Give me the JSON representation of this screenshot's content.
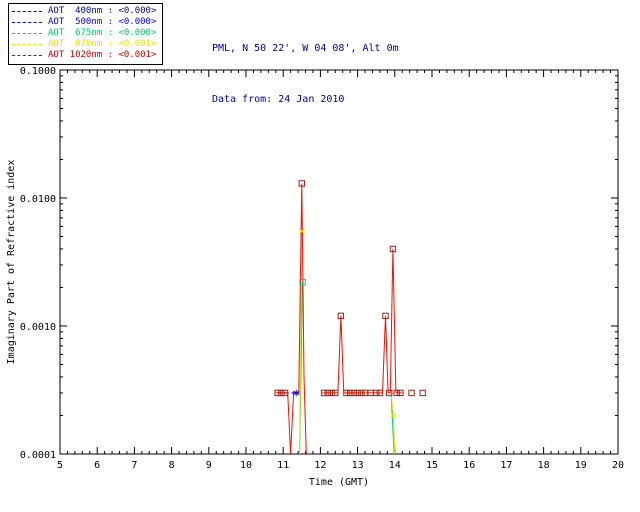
{
  "header": {
    "location_line": "PML, N 50 22', W 04 08', Alt 0m",
    "date_line": "Data from: 24 Jan 2010",
    "text_color": "#000099"
  },
  "legend": {
    "entries": [
      {
        "label": "AOT  400nm : <0.000>",
        "color": "#000099"
      },
      {
        "label": "AOT  500nm : <0.000>",
        "color": "#0000ff"
      },
      {
        "label": "AOT  675nm : <0.000>",
        "color": "#00cc66"
      },
      {
        "label": "AOT  870nm : <0.001>",
        "color": "#f0dd00"
      },
      {
        "label": "AOT 1020nm : <0.001>",
        "color": "#cc0000"
      }
    ]
  },
  "chart_data": {
    "type": "line",
    "title": "",
    "xlabel": "Time (GMT)",
    "ylabel": "Imaginary Part of Refractive index",
    "xlim": [
      5,
      20
    ],
    "x_major_ticks": [
      5,
      6,
      7,
      8,
      9,
      10,
      11,
      12,
      13,
      14,
      15,
      16,
      17,
      18,
      19,
      20
    ],
    "x_minor_step": 0.2,
    "y_scale": "log",
    "ylim": [
      0.0001,
      0.1
    ],
    "y_major_ticks": [
      {
        "value": 0.0001,
        "label": "0.0001"
      },
      {
        "value": 0.001,
        "label": "0.0010"
      },
      {
        "value": 0.01,
        "label": "0.0100"
      },
      {
        "value": 0.1,
        "label": "0.1000"
      }
    ],
    "grid": false,
    "legend_position": "top-left",
    "background": "#ffffff",
    "axis_color": "#000000",
    "series": [
      {
        "name": "AOT 400nm",
        "legend_value": "<0.000>",
        "color": "#000099",
        "dash": "4,3",
        "segments": [
          [
            [
              10.85,
              0.0003
            ],
            [
              11.42,
              0.0003
            ]
          ]
        ],
        "marker": {
          "shape": "none",
          "points": []
        }
      },
      {
        "name": "AOT 500nm",
        "legend_value": "<0.000>",
        "color": "#0000ff",
        "dash": "4,3",
        "segments": [
          [
            [
              10.85,
              0.0003
            ],
            [
              11.45,
              0.0003
            ]
          ]
        ],
        "marker": {
          "shape": "asterisk",
          "points": [
            [
              11.35,
              0.0003
            ]
          ]
        }
      },
      {
        "name": "AOT 675nm",
        "legend_value": "<0.000>",
        "color": "#00cc77",
        "dash": "",
        "segments": [
          [
            [
              11.44,
              0.0001
            ],
            [
              11.52,
              0.0022
            ]
          ],
          [
            [
              13.9,
              0.0003
            ],
            [
              13.98,
              0.0001
            ]
          ]
        ],
        "marker": {
          "shape": "square",
          "points": [
            [
              11.52,
              0.0022
            ]
          ]
        }
      },
      {
        "name": "AOT 870nm",
        "legend_value": "<0.001>",
        "color": "#f0dd00",
        "dash": "",
        "segments": [
          [
            [
              11.44,
              0.0001
            ],
            [
              11.5,
              0.0055
            ]
          ],
          [
            [
              13.9,
              0.0003
            ],
            [
              13.96,
              0.0002
            ],
            [
              14.0,
              0.0001
            ]
          ]
        ],
        "marker": {
          "shape": "x",
          "points": [
            [
              11.5,
              0.0055
            ],
            [
              13.96,
              0.0002
            ]
          ]
        }
      },
      {
        "name": "AOT 1020nm",
        "legend_value": "<0.001>",
        "color": "#ee1100",
        "marker_color": "#a02210",
        "dash": "",
        "segments": [
          [
            [
              10.8,
              0.0003
            ],
            [
              11.12,
              0.0003
            ],
            [
              11.2,
              0.0001
            ],
            [
              11.28,
              0.0003
            ],
            [
              11.42,
              0.0003
            ],
            [
              11.5,
              0.013
            ],
            [
              11.56,
              0.0004
            ],
            [
              11.62,
              0.0001
            ]
          ],
          [
            [
              12.05,
              0.0003
            ],
            [
              12.47,
              0.0003
            ],
            [
              12.55,
              0.0012
            ],
            [
              12.63,
              0.0003
            ],
            [
              13.67,
              0.0003
            ],
            [
              13.75,
              0.0012
            ],
            [
              13.82,
              0.0003
            ],
            [
              13.88,
              0.0003
            ],
            [
              13.95,
              0.004
            ],
            [
              14.03,
              0.0003
            ],
            [
              14.2,
              0.0003
            ]
          ]
        ],
        "marker": {
          "shape": "square",
          "points": [
            [
              10.85,
              0.0003
            ],
            [
              10.95,
              0.0003
            ],
            [
              11.05,
              0.0003
            ],
            [
              11.5,
              0.013
            ],
            [
              12.1,
              0.0003
            ],
            [
              12.2,
              0.0003
            ],
            [
              12.3,
              0.0003
            ],
            [
              12.4,
              0.0003
            ],
            [
              12.55,
              0.0012
            ],
            [
              12.7,
              0.0003
            ],
            [
              12.8,
              0.0003
            ],
            [
              12.9,
              0.0003
            ],
            [
              13.0,
              0.0003
            ],
            [
              13.1,
              0.0003
            ],
            [
              13.2,
              0.0003
            ],
            [
              13.35,
              0.0003
            ],
            [
              13.5,
              0.0003
            ],
            [
              13.6,
              0.0003
            ],
            [
              13.75,
              0.0012
            ],
            [
              13.85,
              0.0003
            ],
            [
              13.95,
              0.004
            ],
            [
              14.05,
              0.0003
            ],
            [
              14.15,
              0.0003
            ],
            [
              14.45,
              0.0003
            ],
            [
              14.75,
              0.0003
            ]
          ]
        }
      }
    ]
  }
}
